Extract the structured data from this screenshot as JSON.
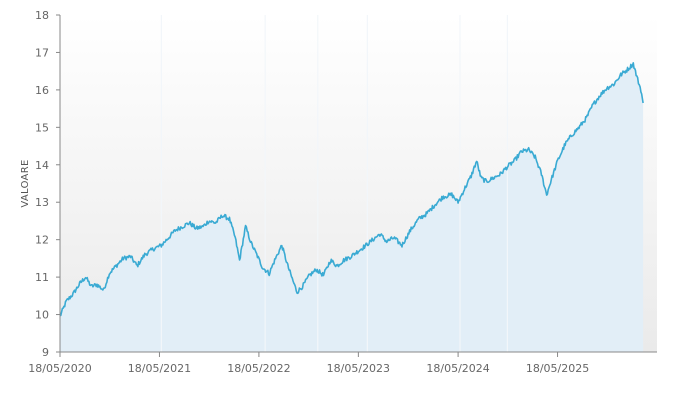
{
  "chart_data": {
    "type": "area",
    "title": "",
    "xlabel": "",
    "ylabel": "VALOARE",
    "ylim": [
      9,
      18
    ],
    "xlim": [
      "2020-05-18",
      "2026-05-18"
    ],
    "yticks": [
      9,
      10,
      11,
      12,
      13,
      14,
      15,
      16,
      17,
      18
    ],
    "xticks": [
      {
        "date": "2020-05-18",
        "label": "18/05/2020"
      },
      {
        "date": "2021-05-18",
        "label": "18/05/2021"
      },
      {
        "date": "2022-05-18",
        "label": "18/05/2022"
      },
      {
        "date": "2023-05-18",
        "label": "18/05/2023"
      },
      {
        "date": "2024-05-18",
        "label": "18/05/2024"
      },
      {
        "date": "2025-05-18",
        "label": "18/05/2025"
      }
    ],
    "grid": false,
    "legend": "none",
    "colors": {
      "line": "#3aaad3",
      "fill": "#e2eef7",
      "axis": "#888888",
      "text": "#666666"
    },
    "series": [
      {
        "points": [
          [
            "2020-05-18",
            9.95
          ],
          [
            "2020-06-10",
            10.35
          ],
          [
            "2020-07-05",
            10.55
          ],
          [
            "2020-08-01",
            10.85
          ],
          [
            "2020-08-20",
            11.0
          ],
          [
            "2020-09-10",
            10.75
          ],
          [
            "2020-10-01",
            10.8
          ],
          [
            "2020-10-25",
            10.65
          ],
          [
            "2020-11-15",
            11.1
          ],
          [
            "2020-12-10",
            11.3
          ],
          [
            "2021-01-05",
            11.5
          ],
          [
            "2021-02-01",
            11.55
          ],
          [
            "2021-02-25",
            11.3
          ],
          [
            "2021-03-25",
            11.6
          ],
          [
            "2021-04-25",
            11.75
          ],
          [
            "2021-05-25",
            11.85
          ],
          [
            "2021-06-20",
            12.05
          ],
          [
            "2021-07-15",
            12.25
          ],
          [
            "2021-08-10",
            12.35
          ],
          [
            "2021-09-05",
            12.45
          ],
          [
            "2021-09-30",
            12.3
          ],
          [
            "2021-10-25",
            12.35
          ],
          [
            "2021-11-15",
            12.5
          ],
          [
            "2021-12-10",
            12.45
          ],
          [
            "2022-01-05",
            12.65
          ],
          [
            "2022-01-30",
            12.55
          ],
          [
            "2022-02-20",
            12.05
          ],
          [
            "2022-03-08",
            11.45
          ],
          [
            "2022-03-30",
            12.35
          ],
          [
            "2022-04-20",
            11.9
          ],
          [
            "2022-05-10",
            11.6
          ],
          [
            "2022-06-01",
            11.25
          ],
          [
            "2022-06-25",
            11.1
          ],
          [
            "2022-07-15",
            11.45
          ],
          [
            "2022-08-10",
            11.85
          ],
          [
            "2022-09-01",
            11.3
          ],
          [
            "2022-09-20",
            10.9
          ],
          [
            "2022-10-05",
            10.6
          ],
          [
            "2022-10-25",
            10.75
          ],
          [
            "2022-11-20",
            11.05
          ],
          [
            "2022-12-15",
            11.2
          ],
          [
            "2023-01-10",
            11.05
          ],
          [
            "2023-02-05",
            11.45
          ],
          [
            "2023-03-01",
            11.3
          ],
          [
            "2023-03-25",
            11.45
          ],
          [
            "2023-04-20",
            11.55
          ],
          [
            "2023-05-18",
            11.7
          ],
          [
            "2023-06-15",
            11.85
          ],
          [
            "2023-07-10",
            12.0
          ],
          [
            "2023-08-05",
            12.15
          ],
          [
            "2023-08-30",
            11.95
          ],
          [
            "2023-09-25",
            12.05
          ],
          [
            "2023-10-25",
            11.85
          ],
          [
            "2023-11-25",
            12.25
          ],
          [
            "2023-12-25",
            12.55
          ],
          [
            "2024-01-25",
            12.7
          ],
          [
            "2024-02-25",
            12.95
          ],
          [
            "2024-03-25",
            13.15
          ],
          [
            "2024-04-25",
            13.2
          ],
          [
            "2024-05-18",
            13.0
          ],
          [
            "2024-06-10",
            13.35
          ],
          [
            "2024-07-05",
            13.7
          ],
          [
            "2024-07-25",
            14.1
          ],
          [
            "2024-08-10",
            13.65
          ],
          [
            "2024-08-30",
            13.55
          ],
          [
            "2024-09-25",
            13.65
          ],
          [
            "2024-10-20",
            13.75
          ],
          [
            "2024-11-15",
            13.95
          ],
          [
            "2024-12-10",
            14.1
          ],
          [
            "2025-01-05",
            14.35
          ],
          [
            "2025-02-01",
            14.4
          ],
          [
            "2025-02-25",
            14.2
          ],
          [
            "2025-03-20",
            13.75
          ],
          [
            "2025-04-08",
            13.2
          ],
          [
            "2025-04-25",
            13.6
          ],
          [
            "2025-05-18",
            14.1
          ],
          [
            "2025-06-15",
            14.55
          ],
          [
            "2025-07-10",
            14.8
          ],
          [
            "2025-08-05",
            15.0
          ],
          [
            "2025-09-01",
            15.25
          ],
          [
            "2025-09-25",
            15.6
          ],
          [
            "2025-10-20",
            15.85
          ],
          [
            "2025-11-15",
            16.05
          ],
          [
            "2025-12-10",
            16.15
          ],
          [
            "2026-01-05",
            16.4
          ],
          [
            "2026-01-30",
            16.55
          ],
          [
            "2026-02-20",
            16.7
          ],
          [
            "2026-03-05",
            16.35
          ],
          [
            "2026-03-20",
            16.0
          ],
          [
            "2026-03-28",
            15.65
          ]
        ]
      }
    ]
  }
}
